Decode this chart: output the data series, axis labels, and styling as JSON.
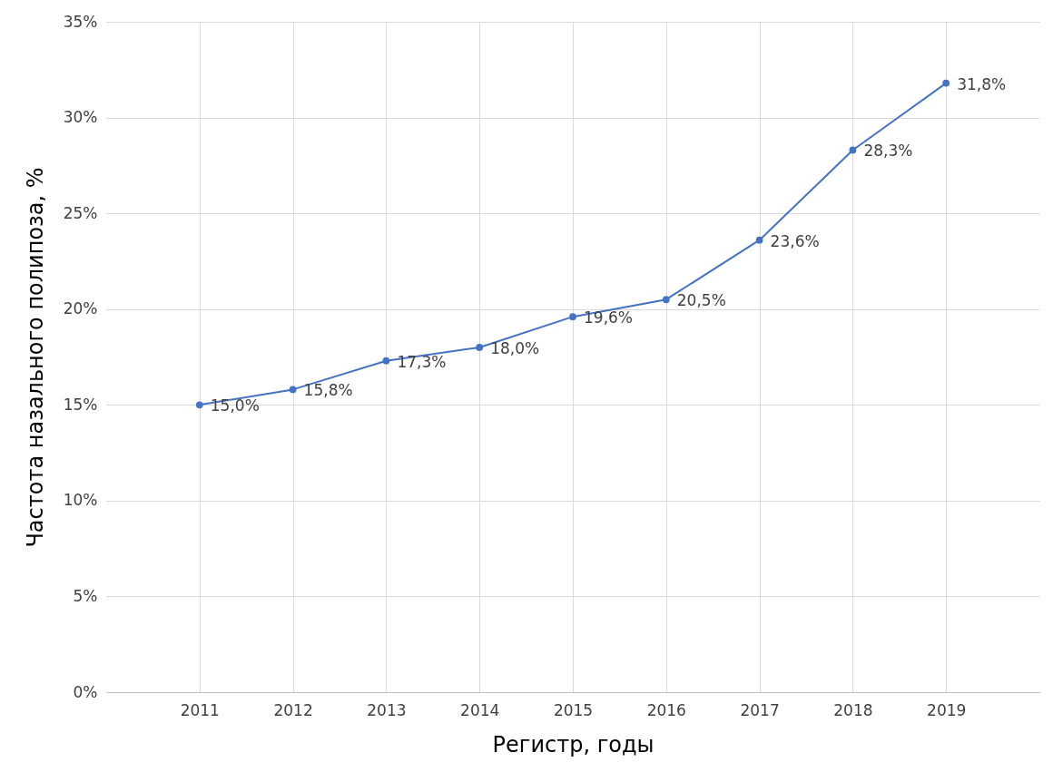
{
  "chart_data": {
    "type": "line",
    "xlabel": "Регистр, годы",
    "ylabel": "Частота назального полипоза, %",
    "categories": [
      "2011",
      "2012",
      "2013",
      "2014",
      "2015",
      "2016",
      "2017",
      "2018",
      "2019"
    ],
    "values": [
      15.0,
      15.8,
      17.3,
      18.0,
      19.6,
      20.5,
      23.6,
      28.3,
      31.8
    ],
    "value_labels": [
      "15,0%",
      "15,8%",
      "17,3%",
      "18,0%",
      "19,6%",
      "20,5%",
      "23,6%",
      "28,3%",
      "31,8%"
    ],
    "color": "#4472c4",
    "marker": "circle",
    "line_style": "solid",
    "grid": true,
    "ylim": [
      0,
      35
    ],
    "yticks": [
      {
        "value": 0,
        "label": "0%"
      },
      {
        "value": 5,
        "label": "5%"
      },
      {
        "value": 10,
        "label": "10%"
      },
      {
        "value": 15,
        "label": "15%"
      },
      {
        "value": 20,
        "label": "20%"
      },
      {
        "value": 25,
        "label": "25%"
      },
      {
        "value": 30,
        "label": "30%"
      },
      {
        "value": 35,
        "label": "35%"
      }
    ]
  }
}
